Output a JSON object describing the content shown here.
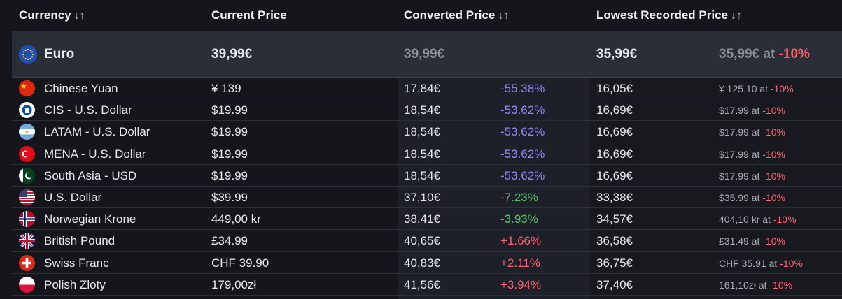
{
  "headers": {
    "currency": "Currency",
    "current_price": "Current Price",
    "converted_price": "Converted Price",
    "lowest_price": "Lowest Recorded Price",
    "sort_glyph": "↓↑"
  },
  "base": {
    "name": "Euro",
    "current": "39,99€",
    "converted": "39,99€",
    "lowest": "35,99€",
    "lowest_detail": "35,99€ at",
    "lowest_discount": "-10%"
  },
  "rows": [
    {
      "name": "Chinese Yuan",
      "current": "¥ 139",
      "converted": "17,84€",
      "diff": "-55.38%",
      "diff_type": "purple",
      "lowest": "16,05€",
      "lowest_detail": "¥ 125.10 at",
      "discount": "-10%",
      "flag": "cn-flag-icon"
    },
    {
      "name": "CIS - U.S. Dollar",
      "current": "$19.99",
      "converted": "18,54€",
      "diff": "-53.62%",
      "diff_type": "purple",
      "lowest": "16,69€",
      "lowest_detail": "$17.99 at",
      "discount": "-10%",
      "flag": "cis-flag-icon"
    },
    {
      "name": "LATAM - U.S. Dollar",
      "current": "$19.99",
      "converted": "18,54€",
      "diff": "-53.62%",
      "diff_type": "purple",
      "lowest": "16,69€",
      "lowest_detail": "$17.99 at",
      "discount": "-10%",
      "flag": "ar-flag-icon"
    },
    {
      "name": "MENA - U.S. Dollar",
      "current": "$19.99",
      "converted": "18,54€",
      "diff": "-53.62%",
      "diff_type": "purple",
      "lowest": "16,69€",
      "lowest_detail": "$17.99 at",
      "discount": "-10%",
      "flag": "tr-flag-icon"
    },
    {
      "name": "South Asia - USD",
      "current": "$19.99",
      "converted": "18,54€",
      "diff": "-53.62%",
      "diff_type": "purple",
      "lowest": "16,69€",
      "lowest_detail": "$17.99 at",
      "discount": "-10%",
      "flag": "pk-flag-icon"
    },
    {
      "name": "U.S. Dollar",
      "current": "$39.99",
      "converted": "37,10€",
      "diff": "-7.23%",
      "diff_type": "green",
      "lowest": "33,38€",
      "lowest_detail": "$35.99 at",
      "discount": "-10%",
      "flag": "us-flag-icon"
    },
    {
      "name": "Norwegian Krone",
      "current": "449,00 kr",
      "converted": "38,41€",
      "diff": "-3.93%",
      "diff_type": "green",
      "lowest": "34,57€",
      "lowest_detail": "404,10 kr at",
      "discount": "-10%",
      "flag": "no-flag-icon"
    },
    {
      "name": "British Pound",
      "current": "£34.99",
      "converted": "40,65€",
      "diff": "+1.66%",
      "diff_type": "red",
      "lowest": "36,58€",
      "lowest_detail": "£31.49 at",
      "discount": "-10%",
      "flag": "gb-flag-icon"
    },
    {
      "name": "Swiss Franc",
      "current": "CHF 39.90",
      "converted": "40,83€",
      "diff": "+2.11%",
      "diff_type": "red",
      "lowest": "36,75€",
      "lowest_detail": "CHF 35.91 at",
      "discount": "-10%",
      "flag": "ch-flag-icon"
    },
    {
      "name": "Polish Zloty",
      "current": "179,00zł",
      "converted": "41,56€",
      "diff": "+3.94%",
      "diff_type": "red",
      "lowest": "37,40€",
      "lowest_detail": "161,10zł at",
      "discount": "-10%",
      "flag": "pl-flag-icon"
    }
  ],
  "colors": {
    "background": "#15161b",
    "base_row": "#2a2e37",
    "converted_col": "#1c1f26",
    "increase": "#ff5e6b",
    "small_decrease": "#58c46a",
    "large_decrease": "#8d86f0"
  }
}
